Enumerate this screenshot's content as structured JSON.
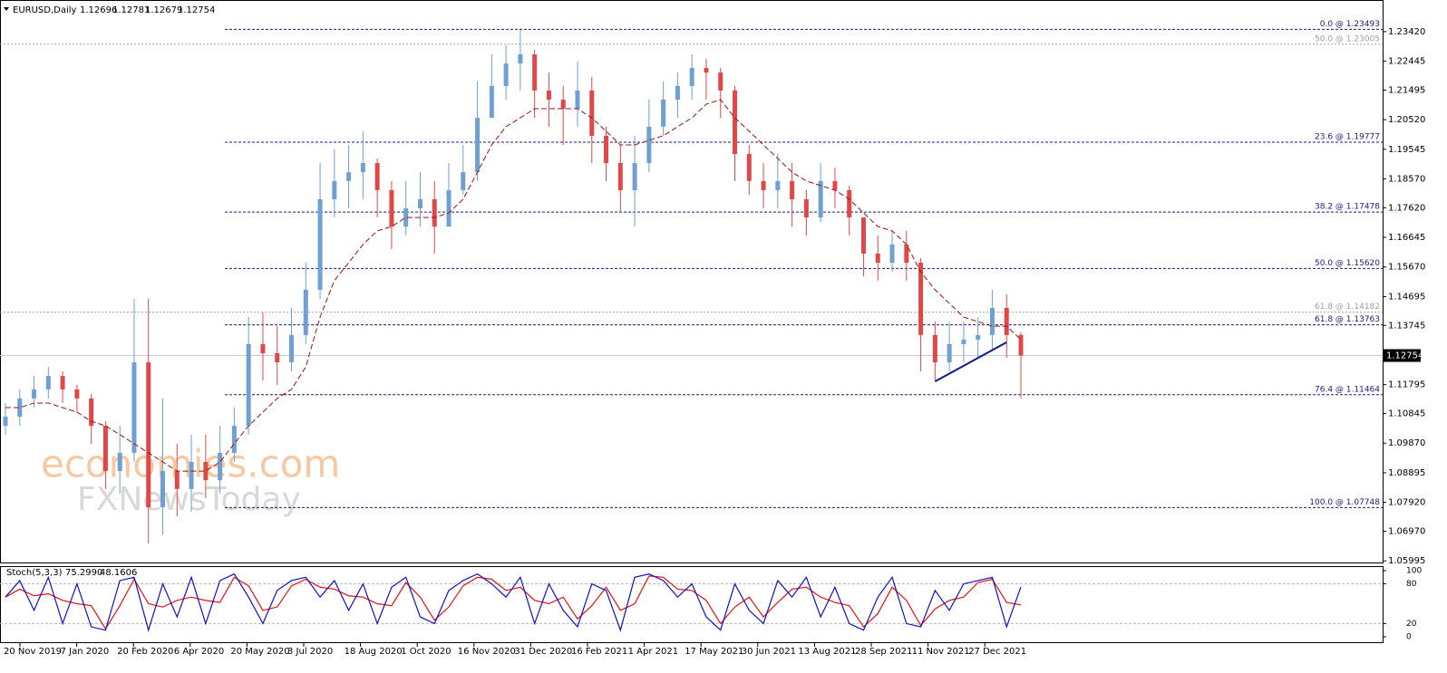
{
  "chart_data": [
    {
      "type": "candlestick",
      "title": "EURUSD,Daily",
      "header_ohlc": [
        1.12696,
        1.12781,
        1.12679,
        1.12754
      ],
      "open": [
        1.1044,
        1.1074,
        1.1134,
        1.1164,
        1.1208,
        1.1164,
        1.1134,
        1.1044,
        1.0895,
        1.0955,
        1.1253,
        1.0776,
        1.0895,
        1.0836,
        1.0925,
        1.0865,
        1.0955,
        1.1044,
        1.1313,
        1.1283,
        1.1253,
        1.1343,
        1.1492,
        1.179,
        1.185,
        1.1879,
        1.1909,
        1.182,
        1.17,
        1.176,
        1.179,
        1.17,
        1.182,
        1.1879,
        1.2058,
        1.2163,
        1.2237,
        1.2267,
        1.2148,
        1.2118,
        1.2088,
        1.2148,
        1.1999,
        1.1909,
        1.182,
        1.1909,
        1.2029,
        1.2118,
        1.2163,
        1.2222,
        1.2207,
        1.2148,
        1.1939,
        1.185,
        1.182,
        1.185,
        1.179,
        1.173,
        1.185,
        1.182,
        1.173,
        1.1611,
        1.1581,
        1.1641,
        1.1581,
        1.1343,
        1.1253,
        1.1313,
        1.1328,
        1.1343,
        1.1432,
        1.1343
      ],
      "high": [
        1.1119,
        1.1164,
        1.1208,
        1.1238,
        1.1223,
        1.1179,
        1.1149,
        1.1059,
        1.1044,
        1.1462,
        1.1462,
        1.1134,
        1.0985,
        1.1015,
        1.1015,
        1.1044,
        1.1104,
        1.1402,
        1.1417,
        1.1372,
        1.1432,
        1.1581,
        1.1909,
        1.1954,
        1.1969,
        1.2014,
        1.1924,
        1.185,
        1.185,
        1.1879,
        1.185,
        1.1909,
        1.1969,
        1.2178,
        1.2267,
        1.2297,
        1.2348,
        1.2282,
        1.2207,
        1.2163,
        1.2243,
        1.2193,
        1.2029,
        1.1969,
        1.1999,
        1.2118,
        1.2178,
        1.2207,
        1.2267,
        1.2252,
        1.2222,
        1.2163,
        1.1969,
        1.1909,
        1.1939,
        1.1909,
        1.182,
        1.1909,
        1.1894,
        1.1835,
        1.173,
        1.1671,
        1.1686,
        1.1686,
        1.1596,
        1.1387,
        1.1387,
        1.1387,
        1.1402,
        1.1492,
        1.1477,
        1.1352
      ],
      "low": [
        1.1015,
        1.1044,
        1.1104,
        1.1134,
        1.1119,
        1.1089,
        1.0985,
        1.0836,
        1.0821,
        1.0925,
        1.0657,
        1.0686,
        1.0746,
        1.0761,
        1.0806,
        1.0821,
        1.0925,
        1.1015,
        1.1193,
        1.1179,
        1.1223,
        1.1313,
        1.1462,
        1.173,
        1.176,
        1.179,
        1.173,
        1.1626,
        1.1671,
        1.17,
        1.1611,
        1.17,
        1.1805,
        1.185,
        1.2058,
        1.2118,
        1.2148,
        1.2058,
        1.2029,
        1.1969,
        1.2029,
        1.1909,
        1.185,
        1.1745,
        1.17,
        1.1879,
        1.1999,
        1.2058,
        1.2118,
        1.2118,
        1.2058,
        1.185,
        1.1805,
        1.176,
        1.176,
        1.17,
        1.1671,
        1.1715,
        1.176,
        1.1671,
        1.1536,
        1.1522,
        1.1551,
        1.1522,
        1.1223,
        1.1193,
        1.1223,
        1.1253,
        1.1268,
        1.1298,
        1.1268,
        1.1134
      ],
      "close": [
        1.1074,
        1.1134,
        1.1164,
        1.1208,
        1.1164,
        1.1134,
        1.1044,
        1.0895,
        1.0955,
        1.1253,
        1.0776,
        1.0895,
        1.0836,
        1.0925,
        1.0865,
        1.0955,
        1.1044,
        1.1313,
        1.1283,
        1.1253,
        1.1343,
        1.1492,
        1.179,
        1.185,
        1.1879,
        1.1909,
        1.182,
        1.17,
        1.176,
        1.179,
        1.17,
        1.182,
        1.1879,
        1.2058,
        1.2163,
        1.2237,
        1.2267,
        1.2148,
        1.2118,
        1.2088,
        1.2148,
        1.1999,
        1.1909,
        1.182,
        1.1909,
        1.2029,
        1.2118,
        1.2163,
        1.2222,
        1.2207,
        1.2148,
        1.1939,
        1.185,
        1.182,
        1.185,
        1.179,
        1.173,
        1.185,
        1.182,
        1.173,
        1.1611,
        1.1581,
        1.1641,
        1.1581,
        1.1343,
        1.1253,
        1.1313,
        1.1328,
        1.1343,
        1.1432,
        1.1343,
        1.12754
      ],
      "up_color": "#6f9fd3",
      "down_color": "#e04848",
      "ma": {
        "color": "#a01010",
        "values": [
          1.1104,
          1.1104,
          1.1119,
          1.1119,
          1.1104,
          1.1089,
          1.1059,
          1.1044,
          1.1015,
          1.0985,
          1.0955,
          1.0925,
          1.0895,
          1.0895,
          1.0895,
          1.0925,
          1.0985,
          1.1044,
          1.1089,
          1.1134,
          1.1164,
          1.1238,
          1.1402,
          1.1522,
          1.1581,
          1.1641,
          1.1686,
          1.17,
          1.173,
          1.173,
          1.173,
          1.1745,
          1.179,
          1.1879,
          1.1969,
          1.2029,
          1.2058,
          1.2088,
          1.2088,
          1.2088,
          1.2088,
          1.2058,
          1.2014,
          1.1969,
          1.1969,
          1.1984,
          1.1999,
          1.2029,
          1.2058,
          1.2103,
          1.2118,
          1.2058,
          1.2014,
          1.1969,
          1.1924,
          1.1879,
          1.185,
          1.1835,
          1.182,
          1.179,
          1.1745,
          1.17,
          1.1686,
          1.1641,
          1.1551,
          1.1492,
          1.1447,
          1.1402,
          1.1387,
          1.1372,
          1.1372,
          1.1328
        ]
      },
      "trendline": {
        "color": "#0c1a8a",
        "x": [
          65,
          70
        ],
        "values": [
          1.119,
          1.1319
        ]
      },
      "ylim": [
        1.0591,
        1.2446
      ],
      "yticks": [
        {
          "value": 1.2342,
          "label": "1.23420"
        },
        {
          "value": 1.22445,
          "label": "1.22445"
        },
        {
          "value": 1.21495,
          "label": "1.21495"
        },
        {
          "value": 1.2052,
          "label": "1.20520"
        },
        {
          "value": 1.19545,
          "label": "1.19545"
        },
        {
          "value": 1.1857,
          "label": "1.18570"
        },
        {
          "value": 1.1762,
          "label": "1.17620"
        },
        {
          "value": 1.16645,
          "label": "1.16645"
        },
        {
          "value": 1.1567,
          "label": "1.15670"
        },
        {
          "value": 1.14695,
          "label": "1.14695"
        },
        {
          "value": 1.13745,
          "label": "1.13745"
        },
        {
          "value": 1.11795,
          "label": "1.11795"
        },
        {
          "value": 1.10845,
          "label": "1.10845"
        },
        {
          "value": 1.0987,
          "label": "1.09870"
        },
        {
          "value": 1.08895,
          "label": "1.08895"
        },
        {
          "value": 1.0792,
          "label": "1.07920"
        },
        {
          "value": 1.0697,
          "label": "1.06970"
        },
        {
          "value": 1.05995,
          "label": "1.05995"
        }
      ],
      "current_price": 1.12754,
      "fib_levels": [
        {
          "value": 1.23493,
          "label": "0.0 @ 1.23493"
        },
        {
          "value": 1.19777,
          "label": "23.6 @ 1.19777"
        },
        {
          "value": 1.17478,
          "label": "38.2 @ 1.17478"
        },
        {
          "value": 1.1562,
          "label": "50.0 @ 1.15620"
        },
        {
          "value": 1.13763,
          "label": "61.8 @ 1.13763"
        },
        {
          "value": 1.11464,
          "label": "76.4 @ 1.11464"
        },
        {
          "value": 1.07748,
          "label": "100.0 @ 1.07748"
        }
      ],
      "fib_levels_prior": [
        {
          "value": 1.23005,
          "label": "50.0 @ 1.23005"
        },
        {
          "value": 1.14182,
          "label": "61.8 @ 1.14182"
        }
      ],
      "date_labels": [
        "20 Nov 2019",
        "7 Jan 2020",
        "20 Feb 2020",
        "6 Apr 2020",
        "20 May 2020",
        "3 Jul 2020",
        "18 Aug 2020",
        "1 Oct 2020",
        "16 Nov 2020",
        "31 Dec 2020",
        "16 Feb 2021",
        "1 Apr 2021",
        "17 May 2021",
        "30 Jun 2021",
        "13 Aug 2021",
        "28 Sep 2021",
        "11 Nov 2021",
        "27 Dec 2021"
      ],
      "watermark": [
        "economies.com",
        "FXNewsToday"
      ]
    },
    {
      "type": "line",
      "title": "Stoch(5,3,3)",
      "readout": [
        {
          "value": 75.299,
          "label": "75.2990"
        },
        48.1606
      ],
      "ylim": [
        0,
        100
      ],
      "yticks": [
        100,
        80,
        20,
        0
      ],
      "levels": [
        80,
        20
      ],
      "series": [
        {
          "name": "Main",
          "color": "#1010c8",
          "values": [
            60,
            85,
            40,
            90,
            20,
            80,
            15,
            10,
            85,
            90,
            10,
            80,
            30,
            90,
            20,
            85,
            95,
            60,
            20,
            70,
            85,
            90,
            60,
            85,
            40,
            80,
            20,
            75,
            90,
            30,
            20,
            70,
            85,
            95,
            80,
            60,
            90,
            20,
            80,
            40,
            15,
            80,
            70,
            10,
            90,
            95,
            85,
            60,
            80,
            30,
            10,
            80,
            40,
            20,
            85,
            60,
            90,
            30,
            75,
            20,
            10,
            60,
            90,
            20,
            15,
            70,
            40,
            80,
            85,
            90,
            15,
            75.299
          ]
        },
        {
          "name": "Signal",
          "color": "#e81010",
          "values": [
            60,
            72,
            62,
            65,
            55,
            50,
            47,
            12,
            47,
            87,
            50,
            45,
            55,
            60,
            55,
            52,
            90,
            77,
            40,
            45,
            77,
            87,
            75,
            72,
            62,
            60,
            50,
            47,
            82,
            60,
            25,
            45,
            77,
            90,
            87,
            70,
            75,
            55,
            50,
            60,
            27,
            47,
            75,
            40,
            50,
            92,
            90,
            72,
            70,
            55,
            20,
            45,
            60,
            30,
            52,
            72,
            75,
            60,
            52,
            47,
            15,
            35,
            75,
            55,
            17,
            42,
            55,
            60,
            82,
            87,
            52,
            48.1606
          ]
        }
      ]
    }
  ]
}
